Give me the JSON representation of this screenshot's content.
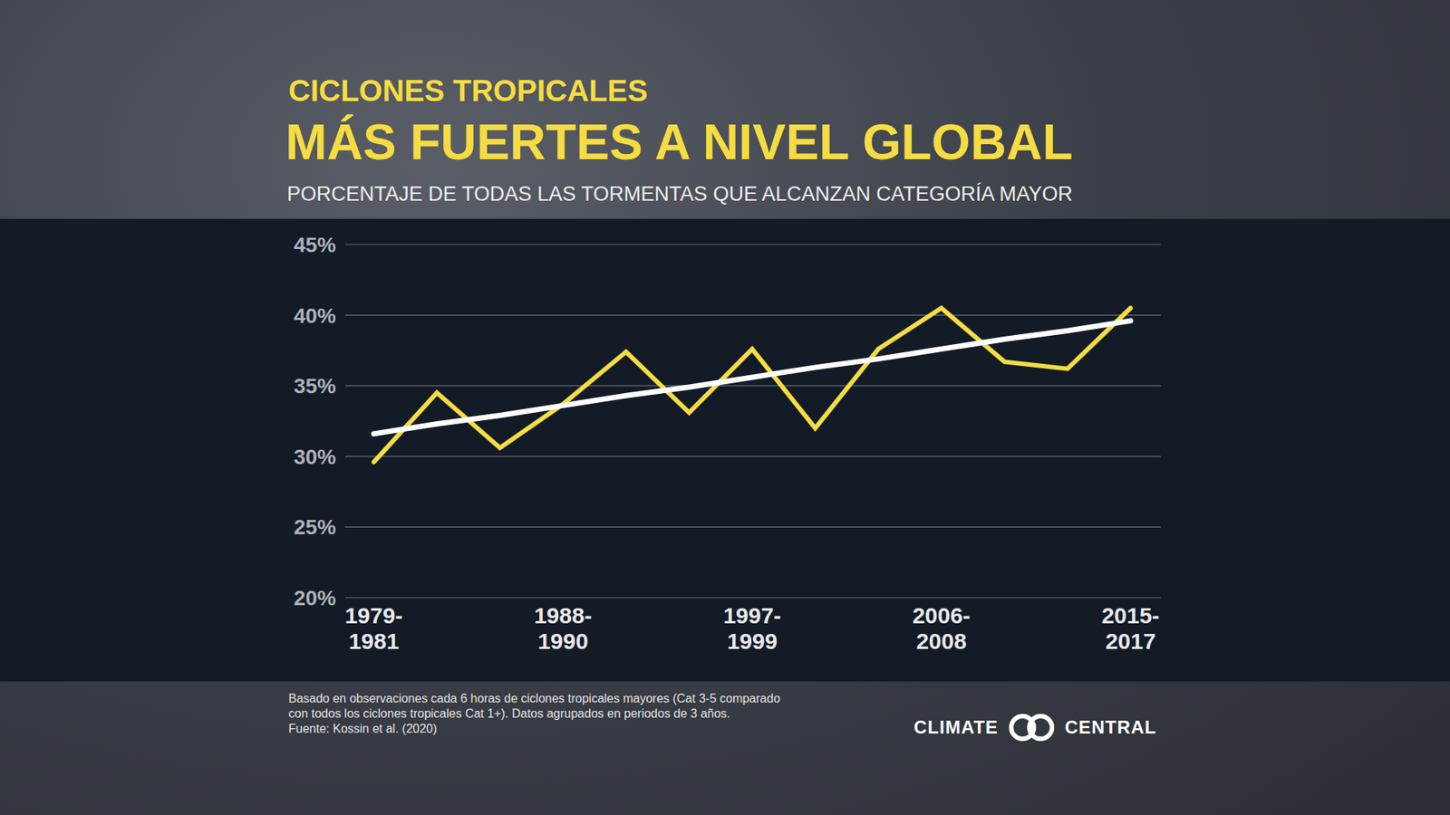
{
  "chart_data": {
    "type": "line",
    "supertitle": "CICLONES TROPICALES",
    "title": "MÁS FUERTES A NIVEL GLOBAL",
    "subtitle": "PORCENTAJE DE TODAS LAS TORMENTAS QUE ALCANZAN CATEGORÍA MAYOR",
    "categories": [
      "1979-1981",
      null,
      null,
      "1988-1990",
      null,
      null,
      "1997-1999",
      null,
      null,
      "2006-2008",
      null,
      null,
      "2015-2017"
    ],
    "series": [
      {
        "color": "#f5dc42",
        "line_style": "solid",
        "marker": "none",
        "values": [
          29.6,
          34.5,
          30.6,
          33.7,
          37.4,
          33.1,
          37.6,
          32.0,
          37.6,
          40.5,
          36.7,
          36.2,
          40.5
        ]
      },
      {
        "color": "#ffffff",
        "line_style": "solid",
        "marker": "none",
        "values": [
          31.6,
          32.3,
          32.9,
          33.6,
          34.3,
          34.9,
          35.6,
          36.3,
          36.9,
          37.6,
          38.3,
          38.9,
          39.6
        ]
      }
    ],
    "ylim": [
      20,
      45
    ],
    "yticks": [
      {
        "value": 20,
        "label": "20%"
      },
      {
        "value": 25,
        "label": "25%"
      },
      {
        "value": 30,
        "label": "30%"
      },
      {
        "value": 35,
        "label": "35%"
      },
      {
        "value": 40,
        "label": "40%"
      },
      {
        "value": 45,
        "label": "45%"
      }
    ],
    "grid": true,
    "notes": [
      "Basado en observaciones cada 6 horas de ciclones tropicales mayores (Cat 3-5 comparado",
      "con todos los ciclones tropicales Cat 1+). Datos agrupados en periodos de 3 años.",
      "Fuente: Kossin et al. (2020)"
    ],
    "credit": "CLIMATE CENTRAL"
  }
}
